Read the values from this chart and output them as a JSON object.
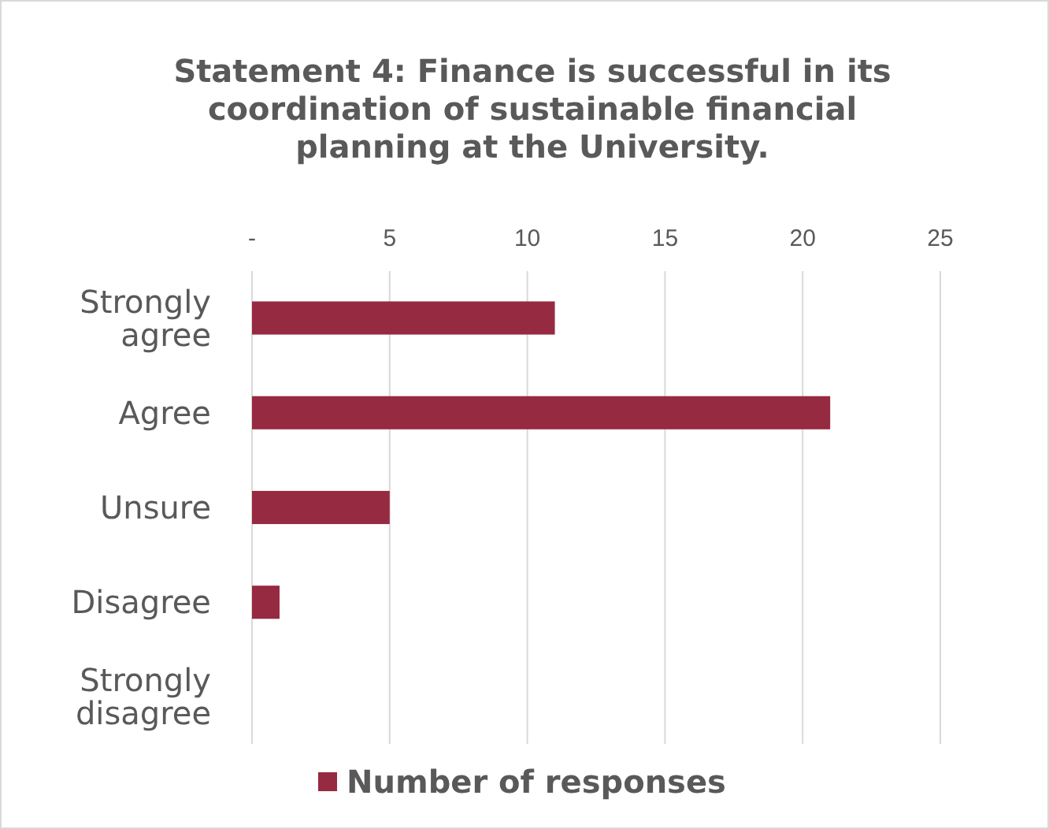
{
  "chart_data": {
    "type": "bar",
    "orientation": "horizontal",
    "title": "Statement 4: Finance is successful in its coordination of sustainable financial planning at the University.",
    "categories": [
      "Strongly agree",
      "Agree",
      "Unsure",
      "Disagree",
      "Strongly disagree"
    ],
    "series": [
      {
        "name": "Number of responses",
        "color": "#962a41",
        "values": [
          11,
          21,
          5,
          1,
          0
        ]
      }
    ],
    "xlim": [
      0,
      25
    ],
    "xticks": [
      {
        "value": 0,
        "label": "-"
      },
      5,
      10,
      15,
      20,
      25
    ],
    "grid": "x",
    "legend": "bottom"
  }
}
